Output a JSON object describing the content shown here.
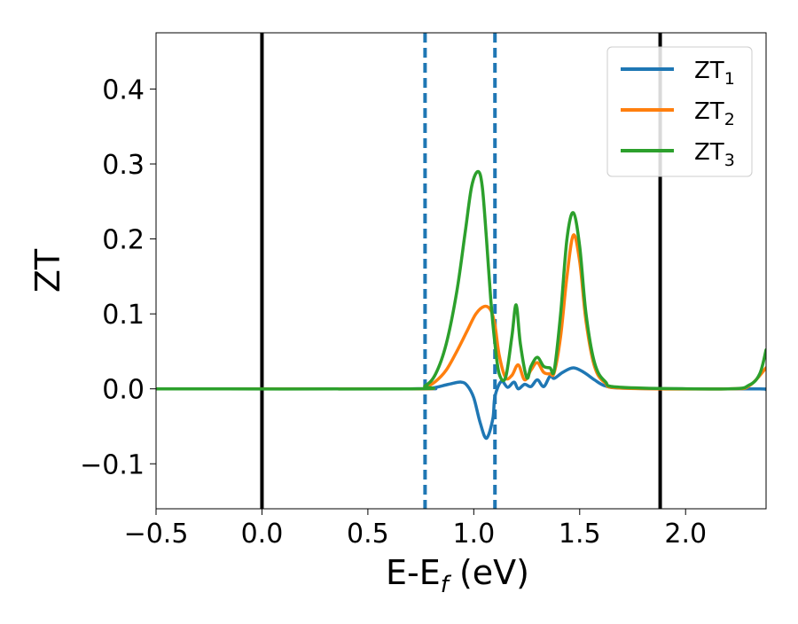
{
  "chart_data": {
    "type": "line",
    "title": "",
    "xlabel": "E-E",
    "xlabel_sub": "f",
    "xlabel_unit": " (eV)",
    "ylabel": "ZT",
    "xlim": [
      -0.5,
      2.38
    ],
    "ylim": [
      -0.16,
      0.475
    ],
    "xticks": [
      -0.5,
      0.0,
      0.5,
      1.0,
      1.5,
      2.0
    ],
    "xtick_labels": [
      "−0.5",
      "0.0",
      "0.5",
      "1.0",
      "1.5",
      "2.0"
    ],
    "yticks": [
      -0.1,
      0.0,
      0.1,
      0.2,
      0.3,
      0.4
    ],
    "ytick_labels": [
      "−0.1",
      "0.0",
      "0.1",
      "0.2",
      "0.3",
      "0.4"
    ],
    "grid": false,
    "legend_position": "top-right",
    "vlines": [
      {
        "x": 0.0,
        "style": "solid",
        "color": "#000000"
      },
      {
        "x": 0.77,
        "style": "dashed",
        "color": "#1f77b4"
      },
      {
        "x": 1.1,
        "style": "dashed",
        "color": "#1f77b4"
      },
      {
        "x": 1.88,
        "style": "solid",
        "color": "#000000"
      }
    ],
    "series": [
      {
        "name": "ZT",
        "name_sub": "1",
        "color": "#1f77b4",
        "x": [
          -0.5,
          0.7,
          0.8,
          0.88,
          0.94,
          0.97,
          1.0,
          1.03,
          1.06,
          1.09,
          1.1,
          1.13,
          1.16,
          1.19,
          1.21,
          1.24,
          1.27,
          1.3,
          1.33,
          1.36,
          1.38,
          1.42,
          1.47,
          1.52,
          1.57,
          1.62,
          1.7,
          2.0,
          2.35,
          2.38
        ],
        "y": [
          0.0,
          0.0,
          0.001,
          0.006,
          0.009,
          0.004,
          -0.012,
          -0.045,
          -0.066,
          -0.04,
          -0.01,
          0.01,
          0.002,
          0.009,
          0.0,
          0.006,
          0.003,
          0.012,
          0.003,
          0.017,
          0.014,
          0.022,
          0.028,
          0.022,
          0.012,
          0.004,
          0.001,
          0.0,
          0.0,
          -0.001
        ]
      },
      {
        "name": "ZT",
        "name_sub": "2",
        "color": "#ff7f0e",
        "x": [
          -0.5,
          0.7,
          0.77,
          0.82,
          0.87,
          0.92,
          0.97,
          1.01,
          1.05,
          1.08,
          1.1,
          1.12,
          1.15,
          1.18,
          1.21,
          1.24,
          1.27,
          1.3,
          1.33,
          1.36,
          1.38,
          1.41,
          1.44,
          1.47,
          1.5,
          1.53,
          1.57,
          1.62,
          1.7,
          2.2,
          2.3,
          2.38
        ],
        "y": [
          0.0,
          0.0,
          0.002,
          0.01,
          0.025,
          0.05,
          0.078,
          0.1,
          0.11,
          0.105,
          0.085,
          0.045,
          0.015,
          0.018,
          0.032,
          0.012,
          0.025,
          0.035,
          0.022,
          0.02,
          0.022,
          0.07,
          0.15,
          0.205,
          0.17,
          0.09,
          0.03,
          0.008,
          0.001,
          0.0,
          0.004,
          0.028
        ]
      },
      {
        "name": "ZT",
        "name_sub": "3",
        "color": "#2ca02c",
        "x": [
          -0.5,
          0.7,
          0.77,
          0.82,
          0.87,
          0.92,
          0.96,
          0.99,
          1.02,
          1.04,
          1.06,
          1.08,
          1.1,
          1.12,
          1.15,
          1.18,
          1.2,
          1.22,
          1.25,
          1.27,
          1.3,
          1.33,
          1.36,
          1.38,
          1.41,
          1.44,
          1.47,
          1.5,
          1.53,
          1.57,
          1.62,
          1.7,
          2.2,
          2.3,
          2.35,
          2.38
        ],
        "y": [
          0.0,
          0.0,
          0.004,
          0.02,
          0.06,
          0.13,
          0.21,
          0.27,
          0.29,
          0.27,
          0.2,
          0.12,
          0.06,
          0.02,
          0.015,
          0.07,
          0.112,
          0.06,
          0.015,
          0.03,
          0.042,
          0.03,
          0.028,
          0.025,
          0.1,
          0.2,
          0.235,
          0.19,
          0.1,
          0.035,
          0.01,
          0.002,
          0.0,
          0.005,
          0.02,
          0.052
        ]
      }
    ]
  }
}
